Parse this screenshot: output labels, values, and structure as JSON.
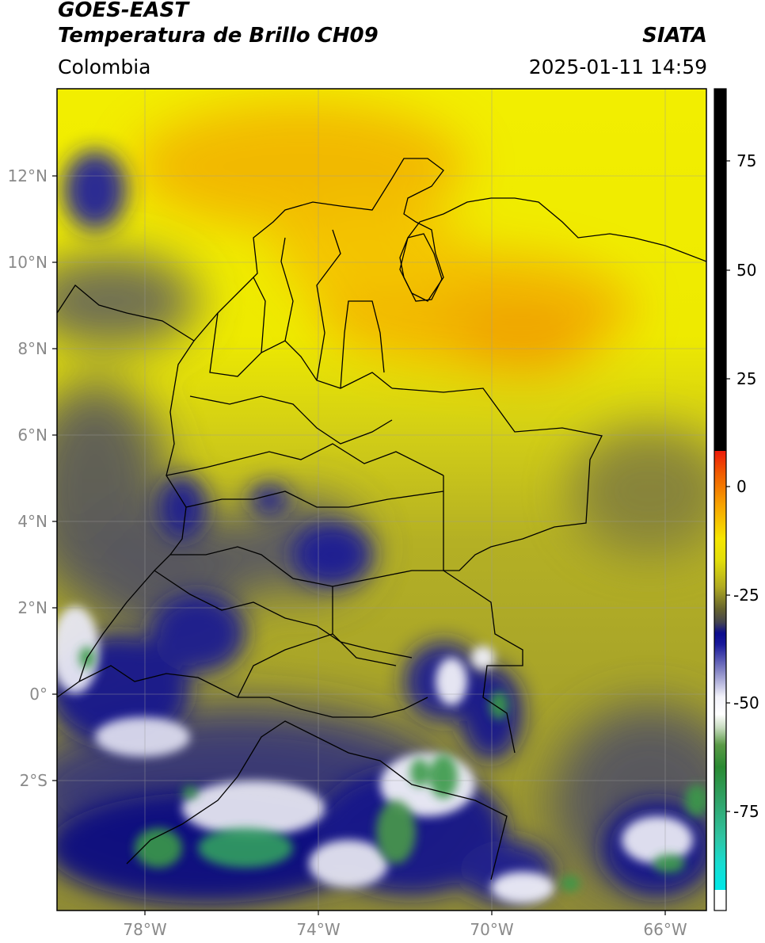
{
  "header": {
    "satellite": "GOES-EAST",
    "product": "Temperatura de Brillo CH09",
    "brand": "SIATA",
    "region": "Colombia",
    "datetime": "2025-01-11 14:59"
  },
  "map": {
    "lat_ticks": [
      "12°N",
      "10°N",
      "8°N",
      "6°N",
      "4°N",
      "2°N",
      "0°",
      "2°S"
    ],
    "lon_ticks": [
      "78°W",
      "74°W",
      "70°W",
      "66°W"
    ]
  },
  "colorbar": {
    "ticks": [
      "75",
      "50",
      "25",
      "0",
      "-25",
      "-50",
      "-75"
    ],
    "colors": {
      "black": "#000000",
      "red": "#e81010",
      "orange": "#f7a000",
      "yellow": "#f6f000",
      "olive": "#a8a428",
      "gray": "#50505a",
      "navy": "#10108a",
      "white": "#ffffff",
      "green": "#3a9a3a",
      "teal": "#30c0a0",
      "cyan": "#00e8e8"
    }
  }
}
